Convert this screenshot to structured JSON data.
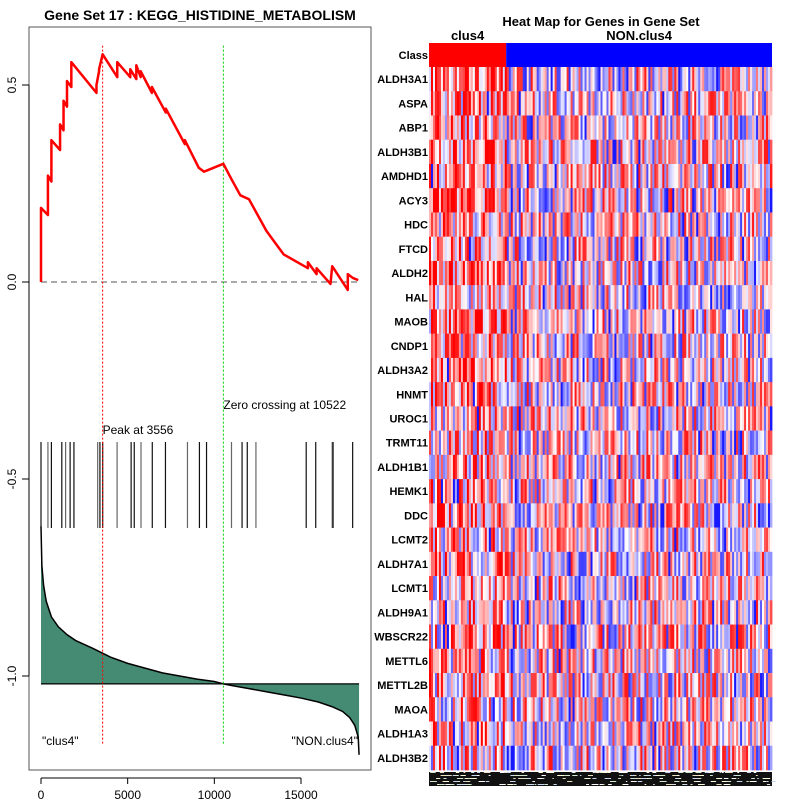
{
  "chart_data": [
    {
      "type": "line",
      "title": "Gene Set  17 : KEGG_HISTIDINE_METABOLISM",
      "xlabel": "",
      "ylabel": "",
      "xlim": [
        0,
        18500
      ],
      "ylim": [
        -1.2,
        0.65
      ],
      "x_ticks": [
        0,
        5000,
        10000,
        15000
      ],
      "x_tick_labels": [
        "0",
        "5000",
        "10000",
        "15000"
      ],
      "y_ticks": [
        0.5,
        0.0,
        -0.5,
        -1.0
      ],
      "y_tick_labels": [
        "0.5",
        "0.0",
        "-0.5",
        "-1.0"
      ],
      "grid": false,
      "running_es": {
        "name": "Running enrichment score",
        "color": "#ff0000",
        "x": [
          0,
          0,
          400,
          400,
          600,
          600,
          1100,
          1100,
          1300,
          1300,
          1500,
          1500,
          1750,
          1750,
          1900,
          1900,
          3200,
          3200,
          3350,
          3350,
          3556,
          4400,
          4400,
          5150,
          5150,
          5500,
          5500,
          5750,
          5750,
          6400,
          6400,
          7200,
          7200,
          8300,
          8300,
          9100,
          9400,
          10522,
          11000,
          11500,
          12000,
          12500,
          13000,
          13500,
          14000,
          15400,
          15400,
          15900,
          15900,
          16700,
          16800,
          16800,
          17700,
          17700,
          18000,
          18300
        ],
        "y": [
          0,
          0.188,
          0.17,
          0.27,
          0.255,
          0.36,
          0.335,
          0.4,
          0.385,
          0.46,
          0.445,
          0.51,
          0.495,
          0.558,
          0.55,
          0.55,
          0.48,
          0.5,
          0.535,
          0.54,
          0.578,
          0.52,
          0.558,
          0.52,
          0.54,
          0.515,
          0.55,
          0.52,
          0.535,
          0.48,
          0.495,
          0.43,
          0.44,
          0.35,
          0.36,
          0.29,
          0.28,
          0.3,
          0.26,
          0.22,
          0.21,
          0.17,
          0.13,
          0.1,
          0.07,
          0.035,
          0.05,
          0.02,
          0.035,
          -0.005,
          0.04,
          0.04,
          -0.02,
          0.02,
          0.01,
          0.005
        ],
        "baseline": 0.0
      },
      "peak": {
        "rank": 3556,
        "label": "Peak at 3556",
        "color": "#ff0000"
      },
      "zero_crossing": {
        "rank": 10522,
        "label": "Zero crossing at 10522",
        "color": "#00cc00"
      },
      "hit_ranks": [
        0,
        400,
        600,
        1200,
        1420,
        1680,
        1900,
        3270,
        3400,
        3560,
        4390,
        5200,
        5380,
        5770,
        6420,
        7180,
        8450,
        9140,
        9550,
        10990,
        11600,
        11900,
        12400,
        15300,
        15850,
        16800,
        16850,
        17980
      ],
      "ranked_metric": {
        "name": "Ranked list metric",
        "fill_color": "#458b74",
        "baseline": -1.02,
        "x": [
          0,
          50,
          150,
          300,
          600,
          1000,
          1500,
          2000,
          3000,
          4000,
          5000,
          6000,
          7000,
          8000,
          9000,
          10000,
          10522,
          11000,
          12000,
          13000,
          14000,
          15000,
          16000,
          16800,
          17400,
          17800,
          18100,
          18300,
          18350
        ],
        "y": [
          -0.62,
          -0.72,
          -0.77,
          -0.81,
          -0.85,
          -0.875,
          -0.895,
          -0.91,
          -0.93,
          -0.952,
          -0.968,
          -0.98,
          -0.992,
          -1.0,
          -1.008,
          -1.014,
          -1.02,
          -1.024,
          -1.032,
          -1.04,
          -1.048,
          -1.056,
          -1.066,
          -1.078,
          -1.09,
          -1.105,
          -1.125,
          -1.155,
          -1.2
        ]
      },
      "annotations": [
        "\"clus4\"",
        "\"NON.clus4\""
      ]
    },
    {
      "type": "heatmap",
      "title": "Heat Map for Genes in Gene Set",
      "column_groups": [
        {
          "label": "clus4",
          "fraction": 0.225,
          "color": "#ff0000"
        },
        {
          "label": "NON.clus4",
          "fraction": 0.775,
          "color": "#0000ff"
        }
      ],
      "class_row_label": "Class",
      "genes": [
        "ALDH3A1",
        "ASPA",
        "ABP1",
        "ALDH3B1",
        "AMDHD1",
        "ACY3",
        "HDC",
        "FTCD",
        "ALDH2",
        "HAL",
        "MAOB",
        "CNDP1",
        "ALDH3A2",
        "HNMT",
        "UROC1",
        "TRMT11",
        "ALDH1B1",
        "HEMK1",
        "DDC",
        "LCMT2",
        "ALDH7A1",
        "LCMT1",
        "ALDH9A1",
        "WBSCR22",
        "METTL6",
        "METTL2B",
        "MAOA",
        "ALDH1A3",
        "ALDH3B2"
      ],
      "color_scale": {
        "low": "#0000ff",
        "mid": "#ffffff",
        "high": "#ff0000"
      },
      "red_bias_by_gene": [
        0.55,
        0.2,
        0.25,
        0.3,
        0.15,
        0.4,
        0.1,
        0.15,
        0.4,
        0.05,
        0.3,
        0.1,
        0.35,
        0.2,
        0.05,
        0.1,
        0.1,
        0.1,
        0.15,
        0.1,
        0.15,
        0.05,
        0.15,
        0.05,
        0.05,
        0.1,
        0.0,
        0.1,
        0.05
      ]
    }
  ]
}
